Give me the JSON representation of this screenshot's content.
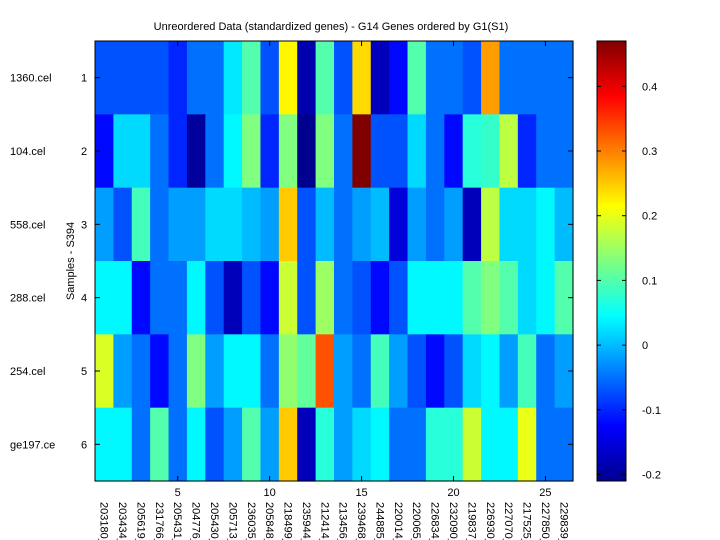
{
  "chart_data": {
    "type": "heatmap",
    "title": "Unreordered Data (standardized genes) - G14 Genes ordered by G1(S1)",
    "ylabel": "Samples - S394",
    "row_names": [
      "1360.cel",
      "104.cel",
      "558.cel",
      "288.cel",
      "254.cel",
      "ge197.ce"
    ],
    "row_ticks": [
      "1",
      "2",
      "3",
      "4",
      "5",
      "6"
    ],
    "x_ticks": [
      "5",
      "10",
      "15",
      "20",
      "25"
    ],
    "x_tick_positions": [
      5,
      10,
      15,
      20,
      25
    ],
    "column_names": [
      "203180_",
      "203434_",
      "205619_",
      "231766_",
      "205431_",
      "204776_",
      "205430_",
      "205713_",
      "236035_",
      "205848_",
      "218499_",
      "235944_",
      "212414_",
      "213456_",
      "239468_",
      "244885_",
      "220014_",
      "220065_",
      "226834_",
      "232090_",
      "219837_",
      "226930_",
      "227070_",
      "217525_",
      "227850_",
      "229839_"
    ],
    "colorbar": {
      "min": -0.21,
      "max": 0.47,
      "ticks": [
        -0.2,
        -0.1,
        0,
        0.1,
        0.2,
        0.3,
        0.4
      ],
      "tick_labels": [
        "-0.2",
        "-0.1",
        "0",
        "0.1",
        "0.2",
        "0.3",
        "0.4"
      ]
    },
    "values": [
      [
        -0.07,
        -0.07,
        -0.07,
        -0.07,
        -0.1,
        -0.05,
        -0.05,
        0.03,
        0.1,
        -0.07,
        0.22,
        -0.18,
        0.1,
        -0.07,
        0.24,
        -0.17,
        -0.12,
        0.1,
        -0.05,
        -0.05,
        -0.07,
        0.28,
        -0.05,
        -0.05,
        -0.05,
        -0.05
      ],
      [
        -0.12,
        0.02,
        0.02,
        -0.05,
        -0.1,
        -0.19,
        -0.05,
        0.04,
        0.13,
        -0.1,
        0.13,
        -0.2,
        0.13,
        -0.05,
        0.47,
        -0.07,
        -0.07,
        0.02,
        -0.05,
        -0.12,
        0.07,
        0.08,
        0.17,
        -0.1,
        -0.05,
        -0.05
      ],
      [
        -0.02,
        -0.07,
        0.09,
        -0.05,
        -0.02,
        -0.02,
        0.02,
        0.02,
        0.0,
        -0.02,
        0.25,
        -0.07,
        0.0,
        -0.05,
        -0.02,
        0.0,
        -0.15,
        -0.02,
        -0.05,
        -0.02,
        -0.17,
        0.17,
        0.02,
        0.02,
        0.04,
        0.0
      ],
      [
        0.04,
        0.04,
        -0.12,
        -0.05,
        -0.05,
        0.04,
        -0.07,
        -0.17,
        -0.07,
        -0.12,
        0.18,
        -0.07,
        0.15,
        -0.05,
        -0.07,
        -0.12,
        -0.07,
        0.04,
        0.04,
        0.04,
        0.1,
        0.13,
        0.1,
        0.02,
        0.04,
        0.1
      ],
      [
        0.19,
        -0.02,
        -0.05,
        -0.12,
        -0.05,
        0.13,
        -0.02,
        0.04,
        0.04,
        -0.05,
        0.14,
        0.11,
        0.33,
        -0.02,
        -0.05,
        0.09,
        -0.02,
        -0.07,
        -0.12,
        -0.07,
        0.02,
        0.04,
        -0.02,
        0.09,
        -0.05,
        -0.02
      ],
      [
        0.04,
        0.04,
        -0.05,
        0.1,
        -0.05,
        0.04,
        -0.07,
        -0.02,
        0.1,
        -0.02,
        0.25,
        -0.17,
        0.07,
        -0.02,
        0.02,
        0.04,
        -0.05,
        -0.05,
        0.07,
        0.07,
        0.18,
        0.04,
        0.04,
        0.2,
        -0.05,
        -0.05
      ]
    ]
  }
}
